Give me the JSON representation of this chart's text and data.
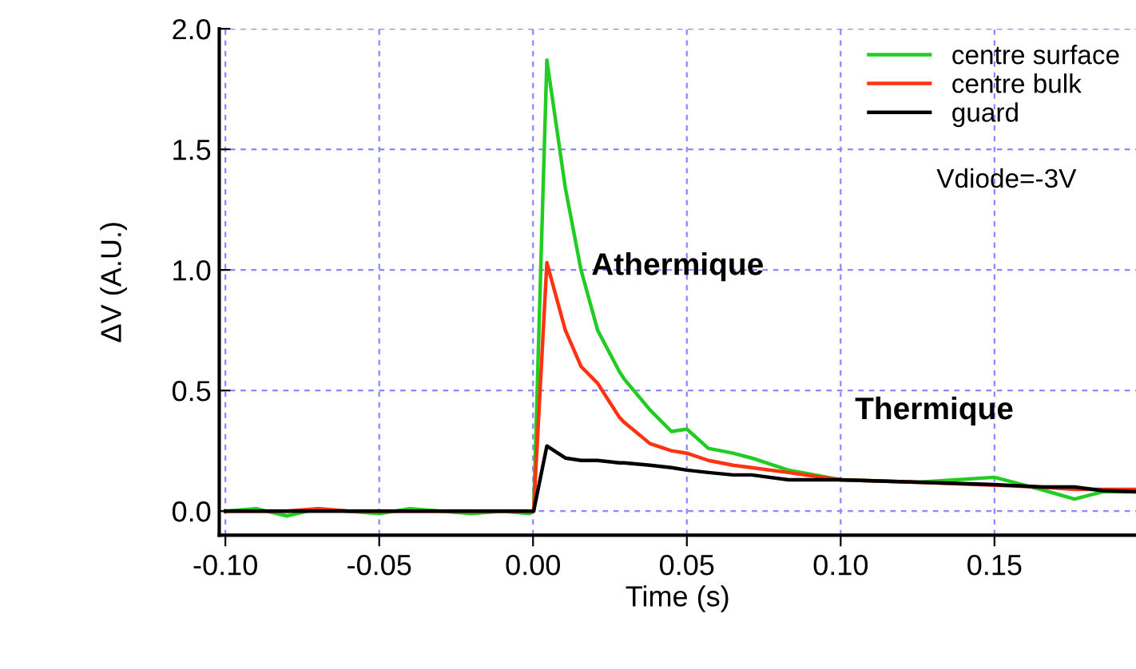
{
  "chart_data": {
    "type": "line",
    "xlabel": "Time (s)",
    "ylabel": "ΔV (A.U.)",
    "xlim": [
      -0.102,
      0.196
    ],
    "ylim": [
      -0.1,
      2.0
    ],
    "xticks": [
      {
        "value": -0.1,
        "label": "-0.10"
      },
      {
        "value": -0.05,
        "label": "-0.05"
      },
      {
        "value": 0.0,
        "label": "0.00"
      },
      {
        "value": 0.05,
        "label": "0.05"
      },
      {
        "value": 0.1,
        "label": "0.10"
      },
      {
        "value": 0.15,
        "label": "0.15"
      }
    ],
    "yticks": [
      {
        "value": 0.0,
        "label": "0.0"
      },
      {
        "value": 0.5,
        "label": "0.5"
      },
      {
        "value": 1.0,
        "label": "1.0"
      },
      {
        "value": 1.5,
        "label": "1.5"
      },
      {
        "value": 2.0,
        "label": "2.0"
      }
    ],
    "grid": true,
    "legend": "top right",
    "x": [
      -0.1,
      -0.09,
      -0.08,
      -0.07,
      -0.06,
      -0.05,
      -0.04,
      -0.03,
      -0.02,
      -0.01,
      -0.001,
      0.0002,
      0.0045,
      0.0105,
      0.0156,
      0.021,
      0.028,
      0.0295,
      0.038,
      0.045,
      0.05,
      0.057,
      0.065,
      0.071,
      0.083,
      0.1,
      0.125,
      0.15,
      0.165,
      0.176,
      0.185,
      0.196
    ],
    "series": [
      {
        "name": "centre surface",
        "color": "#22cc22",
        "values": [
          0.0,
          0.01,
          -0.02,
          0.01,
          0.0,
          -0.01,
          0.01,
          0.0,
          -0.01,
          0.0,
          -0.01,
          0.0,
          1.87,
          1.34,
          1.0,
          0.75,
          0.58,
          0.55,
          0.42,
          0.33,
          0.34,
          0.26,
          0.24,
          0.22,
          0.17,
          0.13,
          0.12,
          0.14,
          0.09,
          0.05,
          0.08,
          0.08
        ]
      },
      {
        "name": "centre bulk",
        "color": "#ff3311",
        "values": [
          0.0,
          0.0,
          0.0,
          0.01,
          0.0,
          0.0,
          0.0,
          0.0,
          0.0,
          0.0,
          0.0,
          0.0,
          1.03,
          0.75,
          0.6,
          0.53,
          0.39,
          0.37,
          0.28,
          0.25,
          0.24,
          0.21,
          0.19,
          0.18,
          0.16,
          0.13,
          0.12,
          0.107,
          0.1,
          0.09,
          0.09,
          0.09
        ]
      },
      {
        "name": "guard",
        "color": "#000000",
        "values": [
          0.0,
          0.0,
          0.0,
          0.0,
          0.0,
          0.0,
          0.0,
          0.0,
          0.0,
          0.0,
          0.0,
          0.0,
          0.27,
          0.22,
          0.21,
          0.21,
          0.2,
          0.2,
          0.19,
          0.18,
          0.17,
          0.16,
          0.15,
          0.15,
          0.13,
          0.13,
          0.12,
          0.11,
          0.1,
          0.1,
          0.085,
          0.08
        ]
      }
    ],
    "annotations": [
      "Vdiode=-3V",
      "Athermique",
      "Thermique"
    ]
  }
}
